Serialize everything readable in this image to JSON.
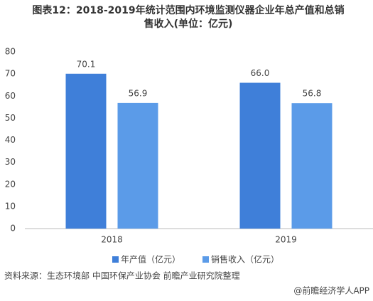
{
  "chart_data": {
    "type": "bar",
    "title": "图表12：2018-2019年统计范围内环境监测仪器企业年总产值和总销售收入(单位：亿元)",
    "categories": [
      "2018",
      "2019"
    ],
    "series": [
      {
        "name": "年产值（亿元）",
        "color": "#3f7fd9",
        "values": [
          70.1,
          66.0
        ],
        "value_labels": [
          "70.1",
          "66.0"
        ]
      },
      {
        "name": "销售收入（亿元）",
        "color": "#5b9be8",
        "values": [
          56.9,
          56.8
        ],
        "value_labels": [
          "56.9",
          "56.8"
        ]
      }
    ],
    "ylim": [
      0,
      80
    ],
    "yticks": [
      0,
      10,
      20,
      30,
      40,
      50,
      60,
      70,
      80
    ],
    "grid": false,
    "legend": "bottom",
    "source": "资料来源：生态环境部 中国环保产业协会 前瞻产业研究院整理",
    "watermark": "@前瞻经济学人APP"
  }
}
